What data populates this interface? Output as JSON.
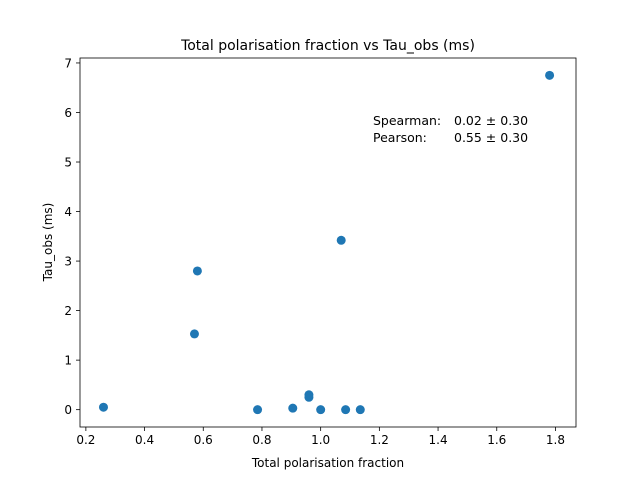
{
  "chart_data": {
    "type": "scatter",
    "title": "Total polarisation fraction vs Tau_obs (ms)",
    "xlabel": "Total polarisation fraction",
    "ylabel": "Tau_obs (ms)",
    "xlim": [
      0.18,
      1.87
    ],
    "ylim": [
      -0.35,
      7.1
    ],
    "xticks": [
      0.2,
      0.4,
      0.6,
      0.8,
      1.0,
      1.2,
      1.4,
      1.6,
      1.8
    ],
    "xtick_labels": [
      "0.2",
      "0.4",
      "0.6",
      "0.8",
      "1.0",
      "1.2",
      "1.4",
      "1.6",
      "1.8"
    ],
    "yticks": [
      0,
      1,
      2,
      3,
      4,
      5,
      6,
      7
    ],
    "ytick_labels": [
      "0",
      "1",
      "2",
      "3",
      "4",
      "5",
      "6",
      "7"
    ],
    "grid": false,
    "series": [
      {
        "name": "data",
        "color": "#1f77b4",
        "x": [
          0.26,
          0.57,
          0.58,
          0.785,
          0.905,
          0.96,
          0.96,
          1.0,
          1.07,
          1.085,
          1.135,
          1.78
        ],
        "y": [
          0.05,
          1.53,
          2.8,
          0.0,
          0.03,
          0.25,
          0.3,
          0.0,
          3.42,
          0.0,
          0.0,
          6.75
        ]
      }
    ],
    "annotations": {
      "spearman_label": "Spearman:",
      "spearman_value": "0.02 ± 0.30",
      "pearson_label": "Pearson:",
      "pearson_value": "0.55 ± 0.30"
    }
  }
}
